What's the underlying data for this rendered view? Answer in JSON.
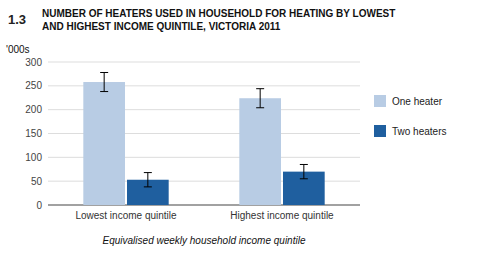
{
  "chart_data": {
    "type": "bar",
    "title": "NUMBER OF HEATERS USED IN HOUSEHOLD FOR HEATING BY LOWEST\nAND HIGHEST INCOME QUINTILE, VICTORIA 2011",
    "annotations": [
      "1.3"
    ],
    "x_label": "Equivalised weekly household income quintile",
    "y_label": "'000s",
    "categories": [
      "Lowest income quintile",
      "Highest income quintile"
    ],
    "series": [
      {
        "name": "One heater",
        "color": "#b8cce4",
        "values": [
          258,
          224
        ],
        "errors": [
          20,
          20
        ]
      },
      {
        "name": "Two heaters",
        "color": "#1f5f9f",
        "values": [
          53,
          70
        ],
        "errors": [
          15,
          15
        ]
      }
    ],
    "ylim": [
      0,
      300
    ],
    "yticks": [
      0,
      50,
      100,
      150,
      200,
      250,
      300
    ],
    "grid": true,
    "legend": "right"
  }
}
